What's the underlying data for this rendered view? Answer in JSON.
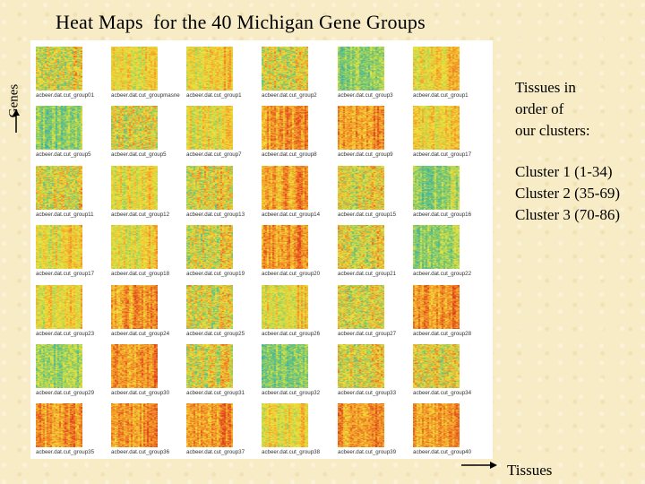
{
  "title": "Heat Maps  for the 40 Michigan Gene Groups",
  "axis": {
    "genes_label": "Genes",
    "tissues_label": "Tissues"
  },
  "legend": {
    "lines": [
      "Tissues in",
      "order of",
      "our clusters:"
    ],
    "clusters": [
      "Cluster 1 (1-34)",
      "Cluster 2 (35-69)",
      "Cluster 3 (70-86)"
    ]
  },
  "heatmaps": [
    {
      "caption": "acbeer.dat.cut_group01",
      "tone": "mixed"
    },
    {
      "caption": "acbeer.dat.cut_groupmasne",
      "tone": "yellow"
    },
    {
      "caption": "acbeer.dat.cut_group1",
      "tone": "yellow"
    },
    {
      "caption": "acbeer.dat.cut_group2",
      "tone": "mixed"
    },
    {
      "caption": "acbeer.dat.cut_group3",
      "tone": "cool"
    },
    {
      "caption": "acbeer.dat.cut_group1",
      "tone": "yellow"
    },
    {
      "caption": "acbeer.dat.cut_group5",
      "tone": "cool"
    },
    {
      "caption": "acbeer.dat.cut_group5",
      "tone": "mixed"
    },
    {
      "caption": "acbeer.dat.cut_group7",
      "tone": "yellow"
    },
    {
      "caption": "acbeer.dat.cut_group8",
      "tone": "hot"
    },
    {
      "caption": "acbeer.dat.cut_group9",
      "tone": "hot"
    },
    {
      "caption": "acbeer.dat.cut_group17",
      "tone": "yellow"
    },
    {
      "caption": "acbeer.dat.cut_group11",
      "tone": "mixed"
    },
    {
      "caption": "acbeer.dat.cut_group12",
      "tone": "yellow"
    },
    {
      "caption": "acbeer.dat.cut_group13",
      "tone": "mixed"
    },
    {
      "caption": "acbeer.dat.cut_group14",
      "tone": "hot"
    },
    {
      "caption": "acbeer.dat.cut_group15",
      "tone": "mixed"
    },
    {
      "caption": "acbeer.dat.cut_group16",
      "tone": "cool"
    },
    {
      "caption": "acbeer.dat.cut_group17",
      "tone": "yellow"
    },
    {
      "caption": "acbeer.dat.cut_group18",
      "tone": "yellow"
    },
    {
      "caption": "acbeer.dat.cut_group19",
      "tone": "mixed"
    },
    {
      "caption": "acbeer.dat.cut_group20",
      "tone": "hot"
    },
    {
      "caption": "acbeer.dat.cut_group21",
      "tone": "mixed"
    },
    {
      "caption": "acbeer.dat.cut_group22",
      "tone": "cool"
    },
    {
      "caption": "acbeer.dat.cut_group23",
      "tone": "yellow"
    },
    {
      "caption": "acbeer.dat.cut_group24",
      "tone": "hot"
    },
    {
      "caption": "acbeer.dat.cut_group25",
      "tone": "mixed"
    },
    {
      "caption": "acbeer.dat.cut_group26",
      "tone": "yellow"
    },
    {
      "caption": "acbeer.dat.cut_group27",
      "tone": "mixed"
    },
    {
      "caption": "acbeer.dat.cut_group28",
      "tone": "hot"
    },
    {
      "caption": "acbeer.dat.cut_group29",
      "tone": "cool"
    },
    {
      "caption": "acbeer.dat.cut_group30",
      "tone": "hot"
    },
    {
      "caption": "acbeer.dat.cut_group31",
      "tone": "mixed"
    },
    {
      "caption": "acbeer.dat.cut_group32",
      "tone": "cool"
    },
    {
      "caption": "acbeer.dat.cut_group33",
      "tone": "mixed"
    },
    {
      "caption": "acbeer.dat.cut_group34",
      "tone": "mixed"
    },
    {
      "caption": "acbeer.dat.cut_group35",
      "tone": "hot"
    },
    {
      "caption": "acbeer.dat.cut_group36",
      "tone": "hot"
    },
    {
      "caption": "acbeer.dat.cut_group37",
      "tone": "hot"
    },
    {
      "caption": "acbeer.dat.cut_group38",
      "tone": "yellow"
    },
    {
      "caption": "acbeer.dat.cut_group39",
      "tone": "hot"
    },
    {
      "caption": "acbeer.dat.cut_group40",
      "tone": "hot"
    }
  ]
}
